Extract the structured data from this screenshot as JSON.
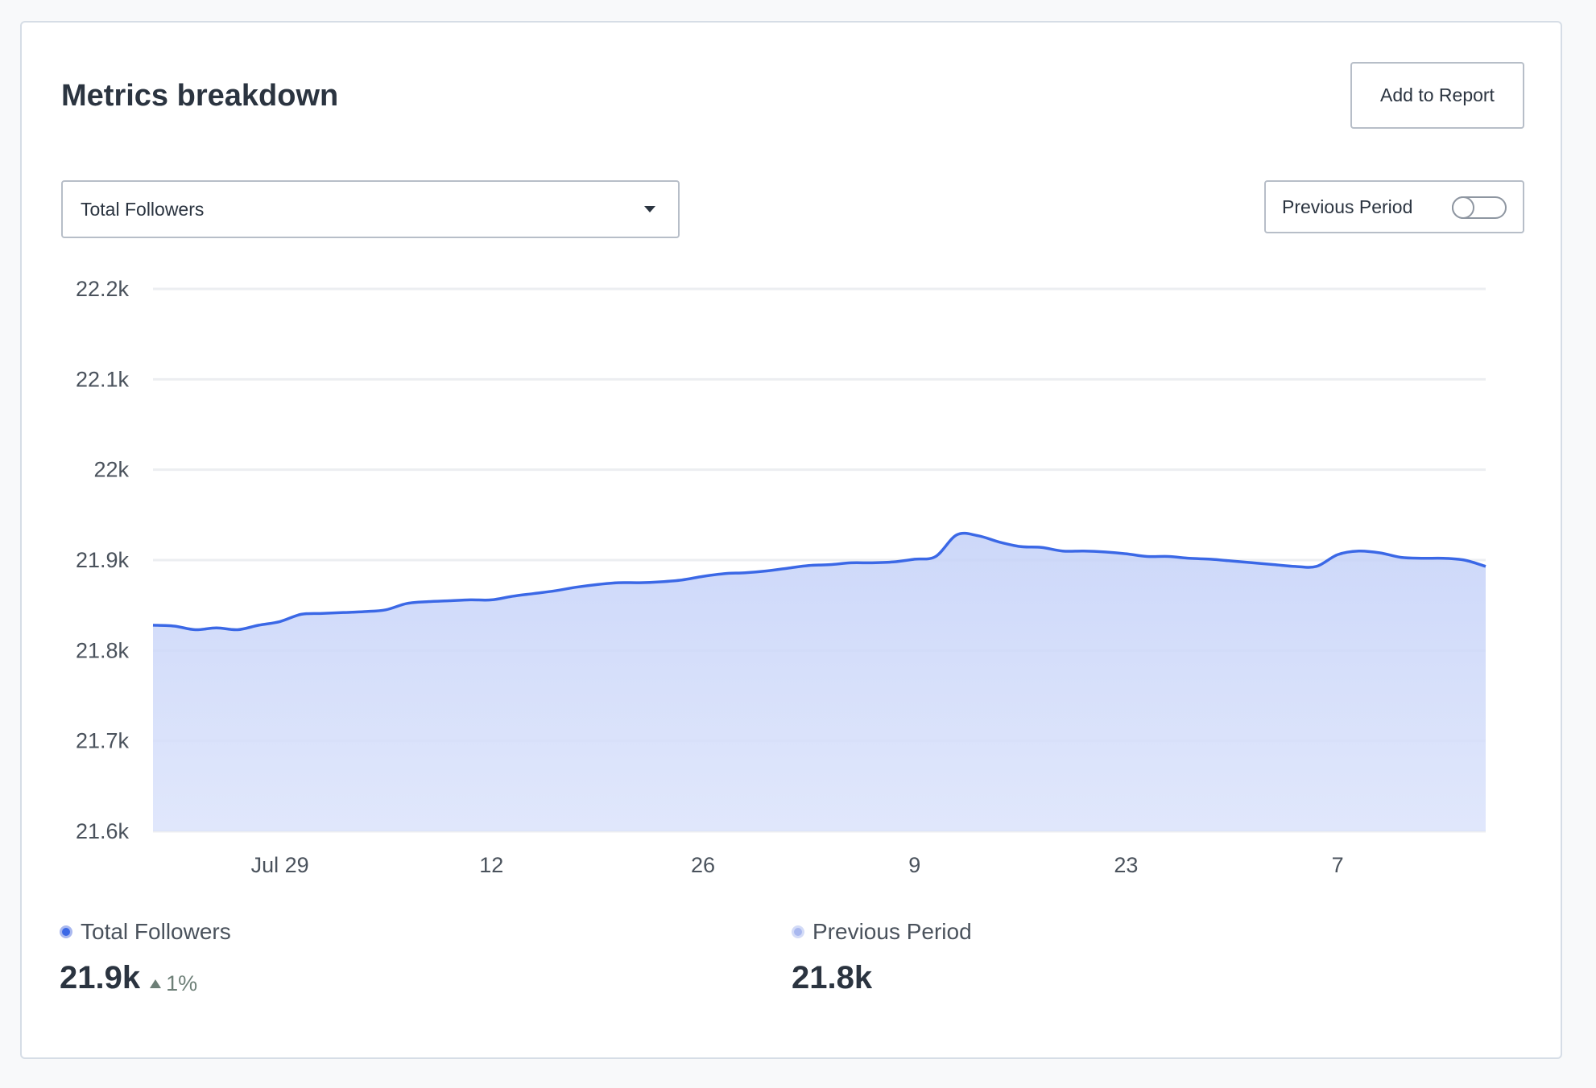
{
  "header": {
    "title": "Metrics breakdown",
    "add_to_report_label": "Add to Report"
  },
  "metric_select": {
    "selected": "Total Followers",
    "icon": "caret-down-icon"
  },
  "previous_period_toggle": {
    "label": "Previous Period",
    "enabled": false
  },
  "colors": {
    "line": "#3b68e6",
    "area_top": "#c4d1f8",
    "area_bottom": "#dbe3fb",
    "grid": "#eceef1",
    "prev_dot": "#a9b8ef"
  },
  "chart_data": {
    "type": "area",
    "xlabel": "",
    "ylabel": "",
    "ylim": [
      21600,
      22200
    ],
    "y_ticks": [
      21600,
      21700,
      21800,
      21900,
      22000,
      22100,
      22200
    ],
    "y_tick_labels": [
      "21.6k",
      "21.7k",
      "21.8k",
      "21.9k",
      "22k",
      "22.1k",
      "22.2k"
    ],
    "x_range": [
      0,
      63
    ],
    "x_ticks": [
      {
        "x": 6,
        "label": "Jul 29"
      },
      {
        "x": 16,
        "label": "12"
      },
      {
        "x": 26,
        "label": "26"
      },
      {
        "x": 36,
        "label": "9"
      },
      {
        "x": 46,
        "label": "23"
      },
      {
        "x": 56,
        "label": "7"
      }
    ],
    "grid": true,
    "series": [
      {
        "name": "Total Followers",
        "values": [
          21828,
          21827,
          21823,
          21825,
          21823,
          21828,
          21832,
          21840,
          21841,
          21842,
          21843,
          21845,
          21852,
          21854,
          21855,
          21856,
          21856,
          21860,
          21863,
          21866,
          21870,
          21873,
          21875,
          21875,
          21876,
          21878,
          21882,
          21885,
          21886,
          21888,
          21891,
          21894,
          21895,
          21897,
          21897,
          21898,
          21901,
          21904,
          21928,
          21927,
          21920,
          21915,
          21914,
          21910,
          21910,
          21909,
          21907,
          21904,
          21904,
          21902,
          21901,
          21899,
          21897,
          21895,
          21893,
          21893,
          21906,
          21910,
          21908,
          21903,
          21902,
          21902,
          21900,
          21893
        ]
      }
    ]
  },
  "summary": {
    "current": {
      "label": "Total Followers",
      "value": "21.9k",
      "delta": "1%",
      "delta_icon": "triangle-up-icon"
    },
    "previous": {
      "label": "Previous Period",
      "value": "21.8k"
    }
  }
}
